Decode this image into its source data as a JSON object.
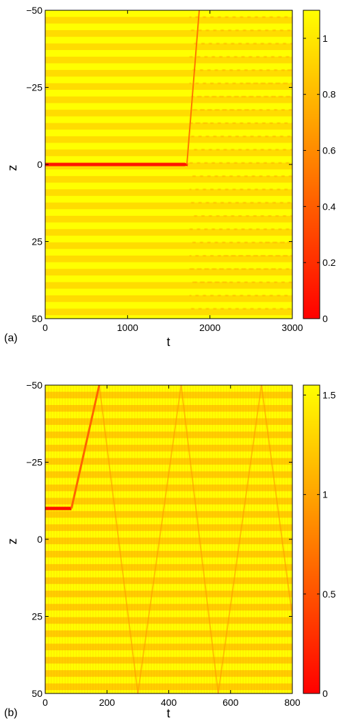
{
  "chart_data": [
    {
      "type": "heatmap",
      "panel_label": "(a)",
      "xlabel": "t",
      "ylabel": "z",
      "xlim": [
        0,
        3000
      ],
      "ylim": [
        -50,
        50
      ],
      "y_axis_reversed": true,
      "x_ticks": [
        "0",
        "1000",
        "2000",
        "3000"
      ],
      "y_ticks": [
        "−50",
        "−25",
        "0",
        "25",
        "50"
      ],
      "colorbar": {
        "range": [
          0,
          1.1
        ],
        "ticks": [
          "0",
          "0.2",
          "0.4",
          "0.6",
          "0.8",
          "1"
        ],
        "colormap": "autumn (red to yellow)"
      },
      "features": {
        "background_lattice_period_z": 4.3,
        "background_min": 0.8,
        "background_max": 1.1,
        "dark_soliton": {
          "z_position": 0,
          "minimum": 0.0,
          "stationary_until_t": 1700,
          "instability_t": 1720,
          "moves_to_z": -50,
          "reaches_boundary_t": 1870
        },
        "radiation_starts_t": 1750
      }
    },
    {
      "type": "heatmap",
      "panel_label": "(b)",
      "xlabel": "t",
      "ylabel": "z",
      "xlim": [
        0,
        800
      ],
      "ylim": [
        -50,
        50
      ],
      "y_axis_reversed": true,
      "x_ticks": [
        "0",
        "200",
        "400",
        "600",
        "800"
      ],
      "y_ticks": [
        "−50",
        "−25",
        "0",
        "25",
        "50"
      ],
      "colorbar": {
        "range": [
          0,
          1.55
        ],
        "ticks": [
          "0",
          "0.5",
          "1",
          "1.5"
        ],
        "colormap": "autumn (red to yellow)"
      },
      "features": {
        "background_lattice_period_z": 4.3,
        "background_min": 0.95,
        "background_max": 1.55,
        "dark_soliton": {
          "z_position": -10,
          "minimum": 0.0,
          "stationary_until_t": 85,
          "moves_to_z": -50,
          "reaches_boundary_t": 175
        },
        "reflection_lines": [
          {
            "t_start": 175,
            "t_end": 300,
            "z_start": -50,
            "z_end": 50
          },
          {
            "t_start": 300,
            "t_end": 440,
            "z_start": 50,
            "z_end": -50
          },
          {
            "t_start": 440,
            "t_end": 560,
            "z_start": -50,
            "z_end": 50
          },
          {
            "t_start": 560,
            "t_end": 700,
            "z_start": 50,
            "z_end": -50
          },
          {
            "t_start": 700,
            "t_end": 800,
            "z_start": -50,
            "z_end": 25
          }
        ]
      }
    }
  ]
}
